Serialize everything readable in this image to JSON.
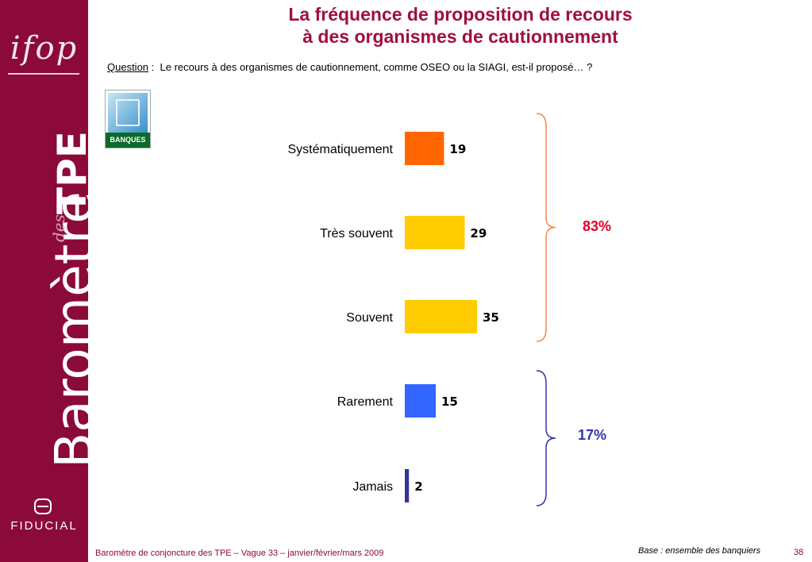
{
  "branding": {
    "logo_text": "ifop",
    "vertical_title_1": "Baromètre",
    "vertical_title_2": "des",
    "vertical_title_3": "TPE",
    "partner": "FIDUCIAL"
  },
  "title": {
    "line1": "La fréquence de proposition de recours",
    "line2": "à des organismes de cautionnement"
  },
  "question": {
    "label": "Question",
    "separator": " :  ",
    "text": "Le recours à des organismes de cautionnement, comme OSEO ou la SIAGI, est-il proposé… ?"
  },
  "badge": {
    "label": "BANQUES"
  },
  "chart_data": {
    "type": "bar",
    "orientation": "horizontal",
    "categories": [
      "Systématiquement",
      "Très souvent",
      "Souvent",
      "Rarement",
      "Jamais"
    ],
    "values": [
      19,
      29,
      35,
      15,
      2
    ],
    "colors": [
      "#ff6600",
      "#ffcc00",
      "#ffcc00",
      "#3366ff",
      "#333399"
    ],
    "groups": [
      {
        "label": "83%",
        "members": [
          0,
          1,
          2
        ],
        "color": "#e00020"
      },
      {
        "label": "17%",
        "members": [
          3,
          4
        ],
        "color": "#3333aa"
      }
    ],
    "grid": false,
    "legend": "none"
  },
  "footer": {
    "left": "Baromètre de conjoncture des TPE – Vague 33 – janvier/février/mars 2009",
    "base": "Base : ensemble des banquiers",
    "page": "38"
  }
}
